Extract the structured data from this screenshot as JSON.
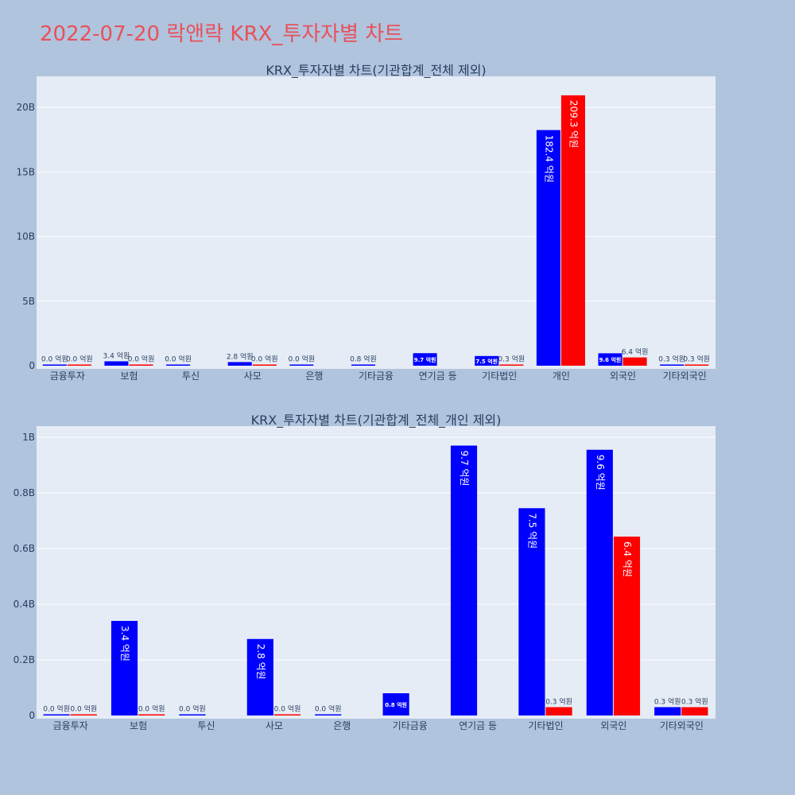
{
  "title": "2022-07-20 락앤락 KRX_투자자별 차트",
  "colors": {
    "title": "#e8515b",
    "background": "#b0c4de",
    "plot_bg": "#e5ecf6",
    "buy": "#0000ff",
    "sell": "#ff0000",
    "text": "#2a3f5f"
  },
  "chart_data": [
    {
      "type": "bar",
      "title": "KRX_투자자별 차트(기관합계_전체 제외)",
      "categories": [
        "금융투자",
        "보험",
        "투신",
        "사모",
        "은행",
        "기타금융",
        "연기금 등",
        "기타법인",
        "개인",
        "외국인",
        "기타외국인"
      ],
      "series": [
        {
          "values": [
            0.0,
            0.34,
            0.0,
            0.28,
            0.0,
            0.08,
            0.97,
            0.75,
            18.24,
            0.96,
            0.03
          ],
          "labels": [
            "0.0 억원",
            "3.4 억원",
            "0.0 억원",
            "2.8 억원",
            "0.0 억원",
            "0.8 억원",
            "9.7 억원",
            "7.5 억원",
            "182.4 억원",
            "9.6 억원",
            "0.3 억원"
          ]
        },
        {
          "values": [
            0.0,
            0.0,
            null,
            0.0,
            null,
            null,
            null,
            0.03,
            20.93,
            0.64,
            0.03
          ],
          "labels": [
            "0.0 억원",
            "0.0 억원",
            "",
            "0.0 억원",
            "",
            "",
            "",
            "0.3 억원",
            "209.3 억원",
            "6.4 억원",
            "0.3 억원"
          ]
        }
      ],
      "yticks": [
        0,
        5,
        10,
        15,
        20
      ],
      "yticklabels": [
        "0",
        "5B",
        "10B",
        "15B",
        "20B"
      ],
      "ylim": [
        0,
        22.4
      ],
      "grid": true
    },
    {
      "type": "bar",
      "title": "KRX_투자자별 차트(기관합계_전체_개인 제외)",
      "categories": [
        "금융투자",
        "보험",
        "투신",
        "사모",
        "은행",
        "기타금융",
        "연기금 등",
        "기타법인",
        "외국인",
        "기타외국인"
      ],
      "series": [
        {
          "values": [
            0.0,
            0.34,
            0.0,
            0.275,
            0.0,
            0.08,
            0.97,
            0.745,
            0.955,
            0.03
          ],
          "labels": [
            "0.0 억원",
            "3.4 억원",
            "0.0 억원",
            "2.8 억원",
            "0.0 억원",
            "0.8 억원",
            "9.7 억원",
            "7.5 억원",
            "9.6 억원",
            "0.3 억원"
          ]
        },
        {
          "values": [
            0.0,
            0.0,
            null,
            0.0,
            null,
            null,
            null,
            0.03,
            0.643,
            0.03
          ],
          "labels": [
            "0.0 억원",
            "0.0 억원",
            "",
            "0.0 억원",
            "",
            "",
            "",
            "0.3 억원",
            "6.4 억원",
            "0.3 억원"
          ]
        }
      ],
      "yticks": [
        0,
        0.2,
        0.4,
        0.6,
        0.8,
        1.0
      ],
      "yticklabels": [
        "0",
        "0.2B",
        "0.4B",
        "0.6B",
        "0.8B",
        "1B"
      ],
      "ylim": [
        0,
        1.04
      ],
      "grid": true
    }
  ]
}
